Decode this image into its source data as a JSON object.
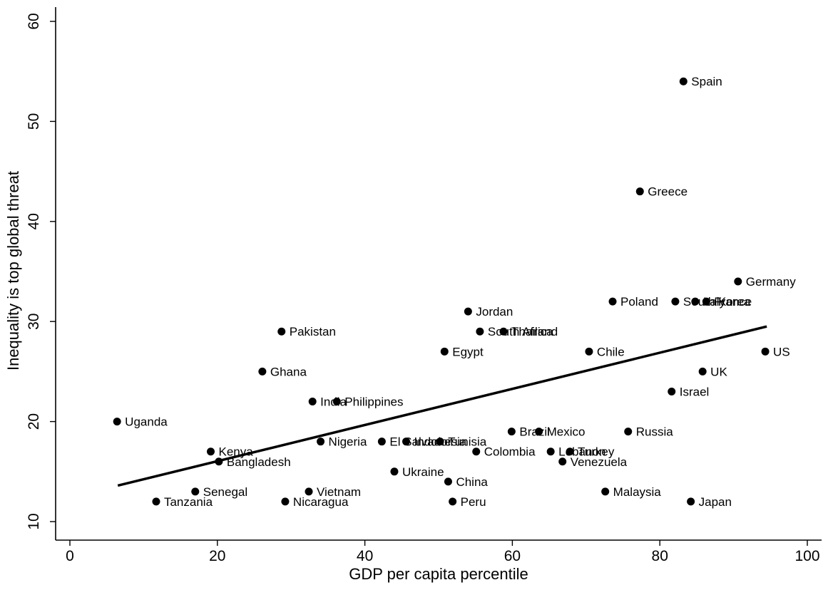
{
  "chart_data": {
    "type": "scatter",
    "title": "",
    "xlabel": "GDP per capita percentile",
    "ylabel": "Inequality is top global threat",
    "xlim": [
      0,
      100
    ],
    "ylim": [
      10,
      60
    ],
    "xticks": [
      0,
      20,
      40,
      60,
      80,
      100
    ],
    "yticks": [
      10,
      20,
      30,
      40,
      50,
      60
    ],
    "grid": false,
    "fit_line": {
      "x": [
        6.5,
        94.5
      ],
      "y": [
        13.6,
        29.5
      ]
    },
    "points": [
      {
        "label": "Uganda",
        "x": 6.4,
        "y": 20
      },
      {
        "label": "Tanzania",
        "x": 11.7,
        "y": 12
      },
      {
        "label": "Senegal",
        "x": 17.0,
        "y": 13
      },
      {
        "label": "Kenya",
        "x": 19.1,
        "y": 17
      },
      {
        "label": "Bangladesh",
        "x": 20.2,
        "y": 16
      },
      {
        "label": "Ghana",
        "x": 26.1,
        "y": 25
      },
      {
        "label": "Pakistan",
        "x": 28.7,
        "y": 29
      },
      {
        "label": "Nicaragua",
        "x": 29.2,
        "y": 12
      },
      {
        "label": "Vietnam",
        "x": 32.4,
        "y": 13
      },
      {
        "label": "India",
        "x": 32.9,
        "y": 22
      },
      {
        "label": "Nigeria",
        "x": 34.0,
        "y": 18
      },
      {
        "label": "Philippines",
        "x": 36.2,
        "y": 22
      },
      {
        "label": "El Salvador",
        "x": 42.3,
        "y": 18
      },
      {
        "label": "Ukraine",
        "x": 44.0,
        "y": 15
      },
      {
        "label": "Indonesia",
        "x": 45.6,
        "y": 18
      },
      {
        "label": "Tunisia",
        "x": 50.2,
        "y": 18
      },
      {
        "label": "Egypt",
        "x": 50.8,
        "y": 27
      },
      {
        "label": "China",
        "x": 51.3,
        "y": 14
      },
      {
        "label": "Peru",
        "x": 51.9,
        "y": 12
      },
      {
        "label": "Jordan",
        "x": 54.0,
        "y": 31
      },
      {
        "label": "Colombia",
        "x": 55.1,
        "y": 17
      },
      {
        "label": "South Africa",
        "x": 55.6,
        "y": 29
      },
      {
        "label": "Thailand",
        "x": 58.8,
        "y": 29
      },
      {
        "label": "Brazil",
        "x": 59.9,
        "y": 19
      },
      {
        "label": "Mexico",
        "x": 63.6,
        "y": 19
      },
      {
        "label": "Lebanon",
        "x": 65.2,
        "y": 17
      },
      {
        "label": "Venezuela",
        "x": 66.8,
        "y": 16
      },
      {
        "label": "Turkey",
        "x": 67.8,
        "y": 17
      },
      {
        "label": "Chile",
        "x": 70.4,
        "y": 27
      },
      {
        "label": "Malaysia",
        "x": 72.6,
        "y": 13
      },
      {
        "label": "Poland",
        "x": 73.6,
        "y": 32
      },
      {
        "label": "Russia",
        "x": 75.7,
        "y": 19
      },
      {
        "label": "Greece",
        "x": 77.3,
        "y": 43
      },
      {
        "label": "Israel",
        "x": 81.6,
        "y": 23
      },
      {
        "label": "South Korea",
        "x": 82.1,
        "y": 32
      },
      {
        "label": "Spain",
        "x": 83.2,
        "y": 54
      },
      {
        "label": "Japan",
        "x": 84.2,
        "y": 12
      },
      {
        "label": "Italy",
        "x": 84.8,
        "y": 32
      },
      {
        "label": "UK",
        "x": 85.8,
        "y": 25
      },
      {
        "label": "France",
        "x": 86.3,
        "y": 32
      },
      {
        "label": "Germany",
        "x": 90.6,
        "y": 34
      },
      {
        "label": "US",
        "x": 94.3,
        "y": 27
      }
    ]
  }
}
